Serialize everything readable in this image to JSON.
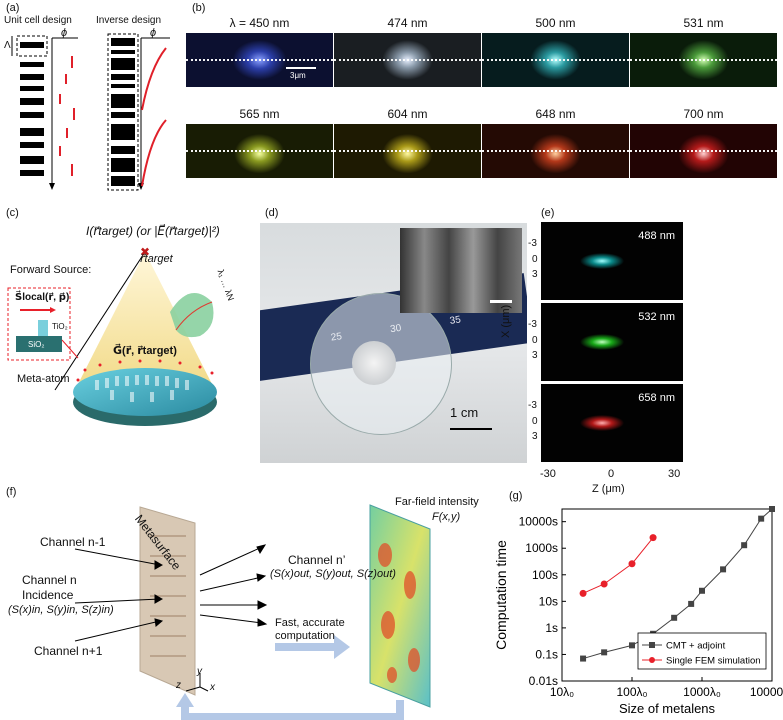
{
  "panel_labels": {
    "a": "(a)",
    "b": "(b)",
    "c": "(c)",
    "d": "(d)",
    "e": "(e)",
    "f": "(f)",
    "g": "(g)"
  },
  "panel_a": {
    "title_left": "Unit cell design",
    "title_right": "Inverse design",
    "lambda_symbol": "Λ",
    "phi_symbol": "ϕ"
  },
  "panel_b": {
    "wavelengths": [
      "λ = 450 nm",
      "474 nm",
      "500 nm",
      "531 nm",
      "565 nm",
      "604 nm",
      "648 nm",
      "700 nm"
    ],
    "colors": [
      "#3a4fc8",
      "#c8d6e6",
      "#5ad6d8",
      "#7fe06a",
      "#c6e040",
      "#e8d82e",
      "#ff5a2a",
      "#ff2a2a"
    ],
    "scale_bar": "3μm"
  },
  "panel_c": {
    "intensity": "I(r⃗target) (or |E⃗(r⃗target)|²)",
    "target": "r⃗target",
    "forward_source": "Forward Source:",
    "s_local": "S⃗local(r⃗, p⃗)",
    "tio2": "TiO₂",
    "sio2": "SiO₂",
    "green_fn": "G⃗(r⃗, r⃗target)",
    "meta_atom": "Meta-atom",
    "lambdas": "λ₁ … λN"
  },
  "panel_d": {
    "scale": "1 cm",
    "ruler_numbers": [
      "25",
      "30",
      "35"
    ]
  },
  "panel_e": {
    "rows": [
      {
        "label": "488 nm",
        "color": "#2ee0e0"
      },
      {
        "label": "532 nm",
        "color": "#30ff40"
      },
      {
        "label": "658 nm",
        "color": "#ff2a2a"
      }
    ],
    "y_ticks": [
      "-3",
      "0",
      "3"
    ],
    "x_ticks": [
      "-30",
      "0",
      "30"
    ],
    "ylabel": "X (μm)",
    "xlabel": "Z (μm)"
  },
  "panel_f": {
    "metasurface": "Metasurface",
    "channel_prev": "Channel n-1",
    "channel_n": "Channel n",
    "incidence": "Incidence",
    "s_in": "(S(x)in, S(y)in, S(z)in)",
    "channel_next": "Channel n+1",
    "channel_out": "Channel n’",
    "s_out": "(S(x)out, S(y)out, S(z)out)",
    "fast": "Fast, accurate",
    "computation": "computation",
    "far_field": "Far-field intensity",
    "fxy": "F(x,y)",
    "axis_y": "y",
    "axis_z": "z",
    "axis_x": "x"
  },
  "chart_data": {
    "type": "line",
    "xlabel": "Size of metalens",
    "ylabel": "Computation time",
    "x_scale": "log",
    "y_scale": "log",
    "x_ticks": [
      "10λ₀",
      "100λ₀",
      "1000λ₀",
      "10000λ₀"
    ],
    "y_ticks": [
      "0.01s",
      "0.1s",
      "1s",
      "10s",
      "100s",
      "1000s",
      "10000s"
    ],
    "xlim": [
      10,
      10000
    ],
    "ylim": [
      0.01,
      30000
    ],
    "series": [
      {
        "name": "CMT + adjoint",
        "color": "#444444",
        "marker": "square",
        "x": [
          20,
          40,
          100,
          200,
          400,
          700,
          1000,
          2000,
          4000,
          7000,
          10000
        ],
        "y": [
          0.07,
          0.12,
          0.22,
          0.6,
          2.4,
          8,
          25,
          160,
          1300,
          13000,
          30000
        ]
      },
      {
        "name": "Single FEM simulation",
        "color": "#e8202a",
        "marker": "circle",
        "x": [
          20,
          40,
          100,
          200
        ],
        "y": [
          20,
          45,
          260,
          2500
        ]
      }
    ],
    "legend_position": "bottom-right"
  }
}
